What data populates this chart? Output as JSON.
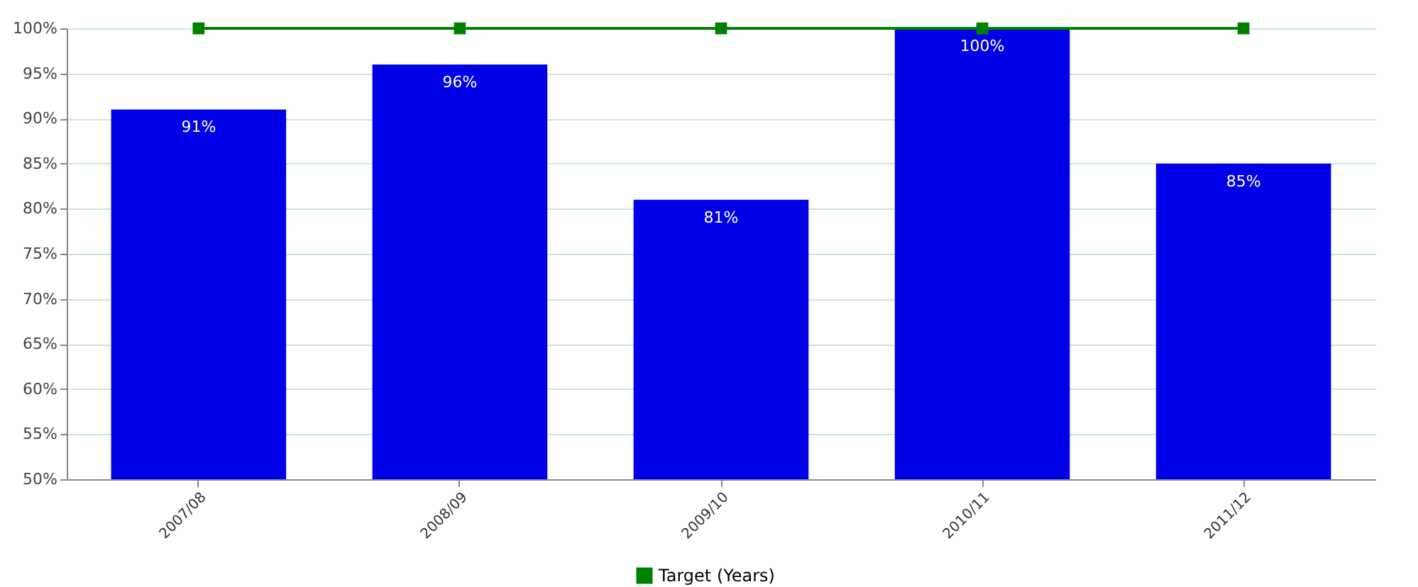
{
  "chart_data": {
    "type": "bar",
    "categories": [
      "2007/08",
      "2008/09",
      "2009/10",
      "2010/11",
      "2011/12"
    ],
    "series": [
      {
        "color": "#0000e6",
        "values": [
          91,
          96,
          81,
          100,
          85
        ],
        "value_labels": [
          "91%",
          "96%",
          "81%",
          "100%",
          "85%"
        ]
      },
      {
        "type": "line",
        "name": "Target (Years)",
        "color": "#008000",
        "values": [
          100,
          100,
          100,
          100,
          100
        ],
        "marker": "square"
      }
    ],
    "ylim": [
      50,
      100
    ],
    "yticks": [
      {
        "value": 50,
        "label": "50%"
      },
      {
        "value": 55,
        "label": "55%"
      },
      {
        "value": 60,
        "label": "60%"
      },
      {
        "value": 65,
        "label": "65%"
      },
      {
        "value": 70,
        "label": "70%"
      },
      {
        "value": 75,
        "label": "75%"
      },
      {
        "value": 80,
        "label": "80%"
      },
      {
        "value": 85,
        "label": "85%"
      },
      {
        "value": 90,
        "label": "90%"
      },
      {
        "value": 95,
        "label": "95%"
      },
      {
        "value": 100,
        "label": "100%"
      }
    ],
    "grid": "y",
    "legend": "bottom"
  }
}
